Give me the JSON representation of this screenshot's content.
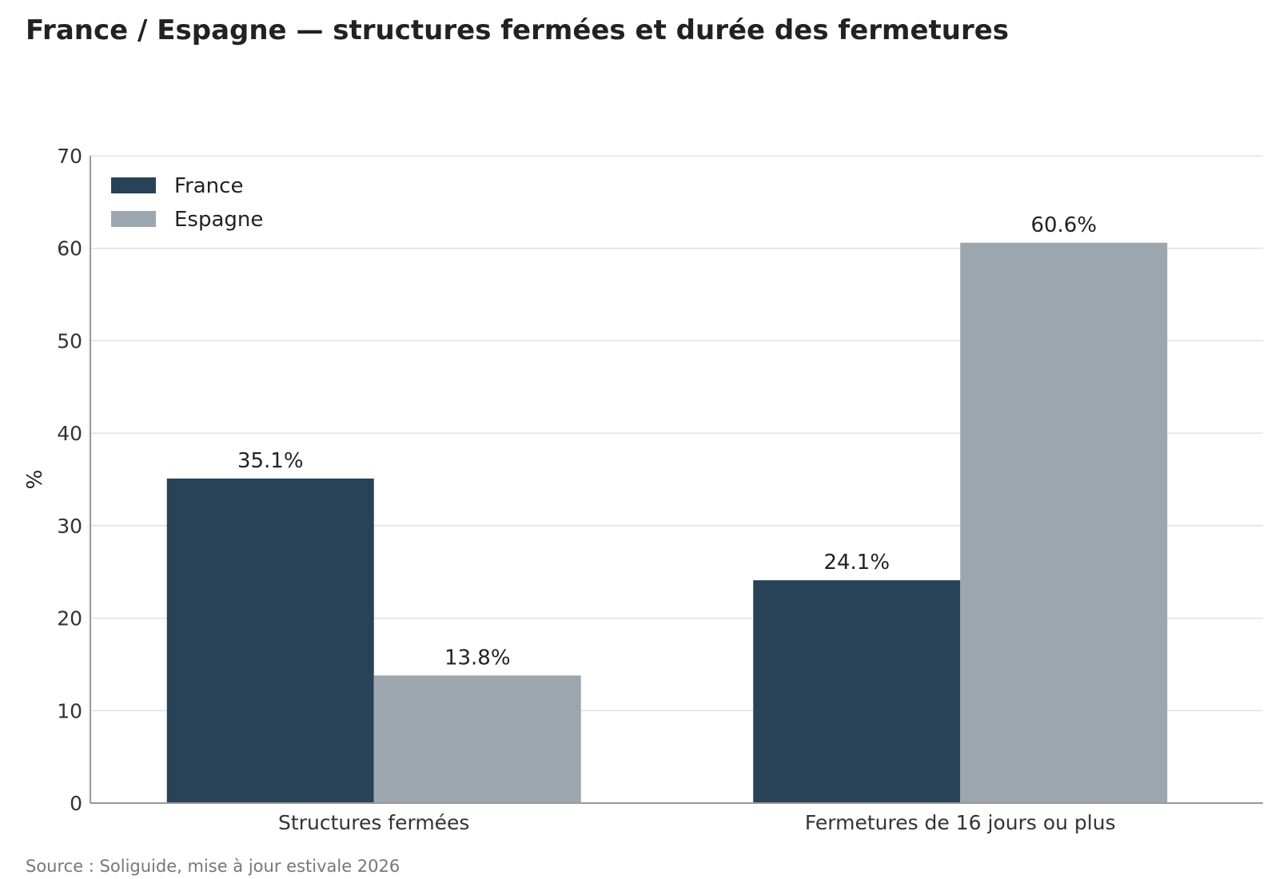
{
  "title": "France / Espagne — structures fermées et durée des fermetures",
  "source": "Source : Soliguide, mise à jour estivale 2026",
  "chart_data": {
    "type": "bar",
    "title": "France / Espagne — structures fermées et durée des fermetures",
    "xlabel": "",
    "ylabel": "%",
    "ylim": [
      0,
      70
    ],
    "yticks": [
      0,
      10,
      20,
      30,
      40,
      50,
      60,
      70
    ],
    "grid": true,
    "legend_position": "top-left",
    "categories": [
      "Structures fermées",
      "Fermetures de 16 jours ou plus"
    ],
    "series": [
      {
        "name": "France",
        "values": [
          35.1,
          24.1
        ],
        "labels": [
          "35.1%",
          "24.1%"
        ],
        "color": "#284257"
      },
      {
        "name": "Espagne",
        "values": [
          13.8,
          60.6
        ],
        "labels": [
          "13.8%",
          "60.6%"
        ],
        "color": "#9ca6ae"
      }
    ],
    "colors": {
      "grid": "#dde2e8",
      "axis": "#999999"
    }
  }
}
